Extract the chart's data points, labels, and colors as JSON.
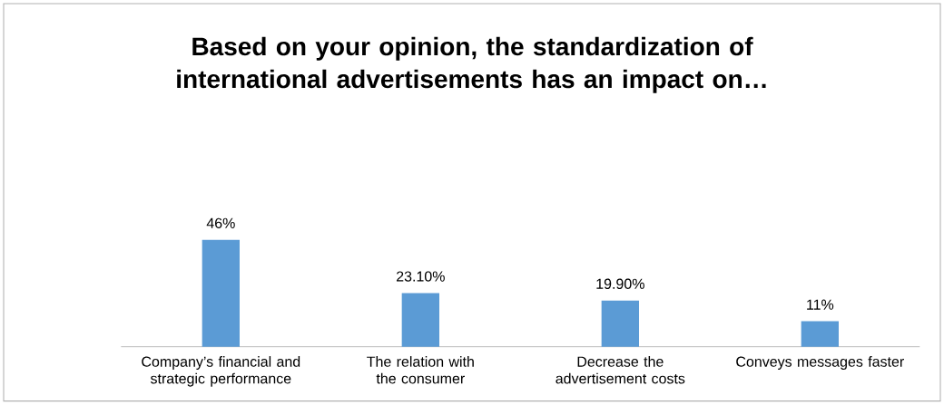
{
  "chart_data": {
    "type": "bar",
    "title": "Based on your opinion, the standardization of international advertisements has an impact on…",
    "categories": [
      "Company’s financial and strategic performance",
      "The relation with the consumer",
      "Decrease the advertisement costs",
      "Conveys messages faster"
    ],
    "values": [
      46,
      23.1,
      19.9,
      11
    ],
    "value_labels": [
      "46%",
      "23.10%",
      "19.90%",
      "11%"
    ],
    "color": "#5b9bd5"
  }
}
